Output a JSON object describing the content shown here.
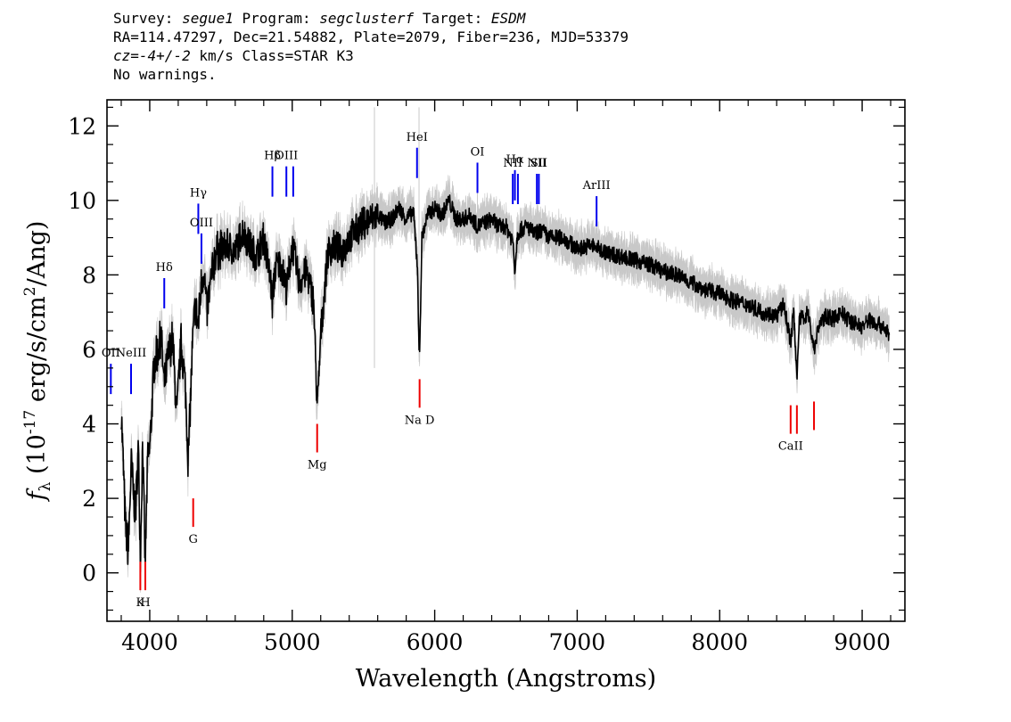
{
  "header": {
    "survey_label": "Survey:",
    "survey": "segue1",
    "program_label": "Program:",
    "program": "segclusterf",
    "target_label": "Target:",
    "target": "ESDM",
    "line2": "RA=114.47297, Dec=21.54882, Plate=2079, Fiber=236, MJD=53379",
    "cz_label": "cz=",
    "cz_value": "-4+/-2",
    "cz_rest": " km/s Class=STAR K3",
    "line4": "No warnings."
  },
  "chart_data": {
    "type": "line",
    "xlabel": "Wavelength (Angstroms)",
    "ylabel_main": "f",
    "ylabel_sub": "λ",
    "ylabel_rest": " (10",
    "ylabel_exp": "-17",
    "ylabel_units": " erg/s/cm",
    "ylabel_exp2": "2",
    "ylabel_end": "/Ang)",
    "xlim": [
      3700,
      9300
    ],
    "ylim": [
      -1.3,
      12.7
    ],
    "xticks": [
      4000,
      5000,
      6000,
      7000,
      8000,
      9000
    ],
    "yticks": [
      0,
      2,
      4,
      6,
      8,
      10,
      12
    ],
    "series": [
      {
        "color": "#000000",
        "x": [
          3800,
          3830,
          3850,
          3870,
          3900,
          3920,
          3935,
          3950,
          3968,
          3985,
          4000,
          4030,
          4060,
          4080,
          4101,
          4130,
          4160,
          4190,
          4220,
          4250,
          4270,
          4300,
          4320,
          4340,
          4360,
          4380,
          4400,
          4430,
          4460,
          4500,
          4550,
          4600,
          4650,
          4700,
          4750,
          4800,
          4850,
          4861,
          4880,
          4920,
          4960,
          5000,
          5050,
          5100,
          5150,
          5175,
          5183,
          5200,
          5250,
          5300,
          5350,
          5400,
          5450,
          5500,
          5550,
          5600,
          5650,
          5700,
          5750,
          5800,
          5850,
          5880,
          5890,
          5896,
          5910,
          5950,
          6000,
          6050,
          6100,
          6150,
          6200,
          6250,
          6300,
          6350,
          6400,
          6450,
          6500,
          6550,
          6563,
          6580,
          6600,
          6650,
          6700,
          6750,
          6800,
          6900,
          7000,
          7100,
          7200,
          7300,
          7400,
          7500,
          7600,
          7700,
          7800,
          7900,
          8000,
          8100,
          8200,
          8300,
          8400,
          8450,
          8498,
          8520,
          8542,
          8560,
          8600,
          8620,
          8662,
          8700,
          8750,
          8800,
          8850,
          8900,
          8950,
          9000,
          9050,
          9100,
          9150,
          9190
        ],
        "values": [
          4.4,
          1.2,
          0.6,
          2.9,
          1.5,
          3.4,
          0.4,
          3.6,
          0.1,
          3.0,
          3.3,
          5.6,
          6.0,
          6.4,
          5.0,
          5.8,
          6.3,
          4.2,
          6.2,
          5.0,
          3.0,
          6.1,
          7.2,
          6.6,
          7.7,
          8.2,
          7.0,
          7.8,
          8.6,
          8.7,
          8.8,
          8.6,
          9.2,
          8.8,
          8.5,
          9.0,
          7.8,
          7.2,
          8.2,
          8.3,
          7.6,
          8.8,
          7.8,
          8.1,
          7.3,
          4.5,
          4.8,
          6.4,
          8.6,
          8.8,
          8.6,
          9.0,
          9.2,
          9.4,
          9.5,
          9.6,
          9.4,
          9.5,
          9.8,
          9.5,
          9.7,
          8.2,
          5.8,
          6.2,
          9.0,
          9.6,
          9.8,
          9.6,
          10.0,
          9.5,
          9.5,
          9.6,
          9.3,
          9.4,
          9.5,
          9.3,
          9.3,
          8.9,
          8.1,
          9.1,
          9.2,
          9.3,
          9.1,
          9.2,
          9.0,
          9.0,
          8.7,
          8.8,
          8.6,
          8.5,
          8.4,
          8.3,
          8.1,
          8.0,
          7.8,
          7.6,
          7.5,
          7.3,
          7.2,
          7.0,
          6.9,
          7.2,
          6.2,
          7.0,
          5.3,
          6.8,
          6.9,
          7.0,
          6.0,
          6.7,
          6.9,
          6.8,
          7.0,
          6.8,
          6.7,
          6.6,
          6.8,
          6.7,
          6.6,
          6.4
        ]
      }
    ],
    "emission_lines": [
      {
        "label": "OII",
        "x": 3727,
        "y": 4.8
      },
      {
        "label": "NeIII",
        "x": 3869,
        "y": 4.8
      },
      {
        "label": "Hδ",
        "x": 4102,
        "y": 7.1
      },
      {
        "label": "Hγ",
        "x": 4341,
        "y": 9.1
      },
      {
        "label": "OIII",
        "x": 4363,
        "y": 8.3
      },
      {
        "label": "Hβ",
        "x": 4861,
        "y": 10.1
      },
      {
        "label": "OIII",
        "x": 4959,
        "y": 10.1
      },
      {
        "label": "",
        "x": 5007,
        "y": 10.1
      },
      {
        "label": "HeI",
        "x": 5876,
        "y": 10.6
      },
      {
        "label": "OI",
        "x": 6300,
        "y": 10.2
      },
      {
        "label": "NII",
        "x": 6548,
        "y": 9.9
      },
      {
        "label": "Hα",
        "x": 6563,
        "y": 10.0
      },
      {
        "label": "",
        "x": 6584,
        "y": 9.9
      },
      {
        "label": "NII",
        "x": 6717,
        "y": 9.9
      },
      {
        "label": "SII",
        "x": 6731,
        "y": 9.9
      },
      {
        "label": "ArIII",
        "x": 7136,
        "y": 9.3
      }
    ],
    "absorption_lines": [
      {
        "label": "K",
        "x": 3934,
        "y": 0.3
      },
      {
        "label": "H",
        "x": 3969,
        "y": 0.3
      },
      {
        "label": "G",
        "x": 4305,
        "y": 2.0
      },
      {
        "label": "Mg",
        "x": 5175,
        "y": 4.0
      },
      {
        "label": "Na D",
        "x": 5894,
        "y": 5.2
      },
      {
        "label": "CaII",
        "x": 8498,
        "y": 4.5
      },
      {
        "label": "",
        "x": 8542,
        "y": 4.5
      },
      {
        "label": "",
        "x": 8662,
        "y": 4.6
      }
    ]
  }
}
